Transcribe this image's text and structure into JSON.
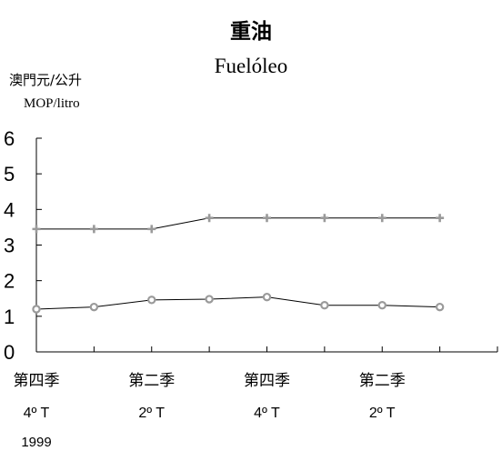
{
  "chart_data": {
    "type": "line",
    "title": "重油",
    "subtitle": "Fuelóleo",
    "ylabel_zh": "澳門元/公升",
    "ylabel_pt": "MOP/litro",
    "ylim": [
      0,
      6
    ],
    "yticks": [
      "0",
      "1",
      "2",
      "3",
      "4",
      "5",
      "6"
    ],
    "x_labels": [
      {
        "zh": "第四季",
        "pt": "4º  T",
        "year": "1999"
      },
      {
        "zh": "第二季",
        "pt": "2º  T",
        "year": ""
      },
      {
        "zh": "第四季",
        "pt": "4º  T",
        "year": ""
      },
      {
        "zh": "第二季",
        "pt": "2º  T",
        "year": ""
      }
    ],
    "points_per_label": 2,
    "series": [
      {
        "marker": "plus",
        "color": "#9a9a9a",
        "values": [
          3.45,
          3.45,
          3.45,
          3.76,
          3.76,
          3.76,
          3.76,
          3.76
        ]
      },
      {
        "marker": "circle",
        "color": "#9a9a9a",
        "values": [
          1.2,
          1.26,
          1.46,
          1.48,
          1.54,
          1.31,
          1.31,
          1.26
        ]
      }
    ],
    "grid": false,
    "legend": "none"
  }
}
